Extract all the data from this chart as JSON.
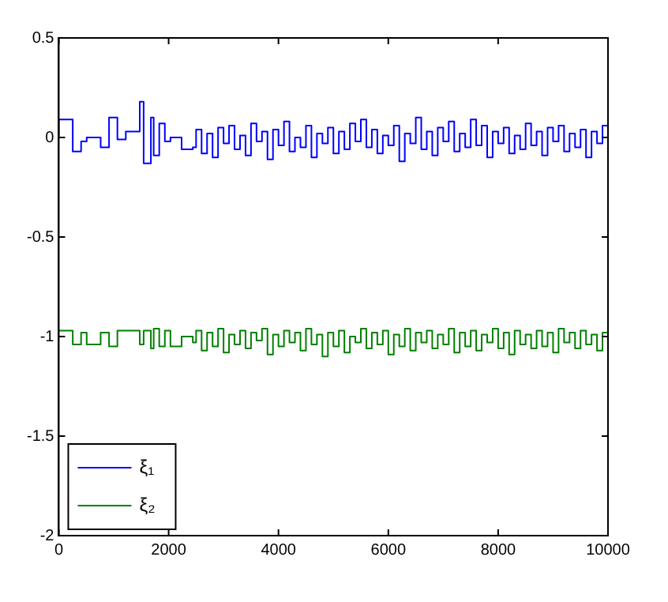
{
  "chart_data": {
    "type": "step",
    "x": [
      0,
      254,
      406,
      508,
      762,
      915,
      1067,
      1220,
      1474,
      1545,
      1677,
      1728,
      1829,
      1931,
      2033,
      2236,
      2440,
      2500,
      2600,
      2700,
      2800,
      2900,
      3000,
      3100,
      3200,
      3300,
      3400,
      3500,
      3600,
      3700,
      3800,
      3900,
      4000,
      4100,
      4200,
      4300,
      4400,
      4500,
      4600,
      4700,
      4800,
      4900,
      5000,
      5100,
      5200,
      5300,
      5400,
      5500,
      5600,
      5700,
      5800,
      5900,
      6000,
      6100,
      6200,
      6300,
      6400,
      6500,
      6600,
      6700,
      6800,
      6900,
      7000,
      7100,
      7200,
      7300,
      7400,
      7500,
      7600,
      7700,
      7800,
      7900,
      8000,
      8100,
      8200,
      8300,
      8400,
      8500,
      8600,
      8700,
      8800,
      8900,
      9000,
      9100,
      9200,
      9300,
      9400,
      9500,
      9600,
      9700,
      9800,
      9900,
      10000
    ],
    "series": [
      {
        "name": "ξ₁",
        "color": "#0000ff",
        "values": [
          0.01,
          0.09,
          -0.07,
          -0.02,
          0.0,
          -0.05,
          0.1,
          -0.01,
          0.03,
          0.18,
          -0.13,
          0.1,
          -0.09,
          0.07,
          -0.02,
          0.0,
          -0.06,
          -0.05,
          0.04,
          -0.08,
          0.02,
          -0.1,
          0.05,
          -0.03,
          0.06,
          -0.06,
          0.01,
          -0.09,
          0.07,
          -0.02,
          0.03,
          -0.11,
          0.04,
          -0.04,
          0.08,
          -0.07,
          0.0,
          -0.05,
          0.06,
          -0.1,
          0.02,
          -0.03,
          0.05,
          -0.08,
          0.03,
          -0.06,
          0.07,
          -0.02,
          0.09,
          -0.05,
          0.04,
          -0.08,
          0.01,
          -0.04,
          0.06,
          -0.12,
          0.02,
          -0.03,
          0.1,
          -0.06,
          0.03,
          -0.09,
          0.05,
          -0.02,
          0.08,
          -0.07,
          0.02,
          -0.05,
          0.09,
          -0.04,
          0.06,
          -0.1,
          0.03,
          -0.03,
          0.05,
          -0.08,
          0.01,
          -0.06,
          0.07,
          -0.04,
          0.03,
          -0.09,
          0.05,
          -0.02,
          0.06,
          -0.07,
          0.02,
          -0.05,
          0.04,
          -0.1,
          0.03,
          -0.03,
          0.06
        ]
      },
      {
        "name": "ξ₂",
        "color": "#008000",
        "values": [
          -0.97,
          -0.97,
          -1.04,
          -0.98,
          -1.04,
          -0.98,
          -1.05,
          -0.97,
          -0.97,
          -1.04,
          -0.97,
          -1.06,
          -0.96,
          -1.05,
          -0.97,
          -1.05,
          -1.0,
          -1.03,
          -0.97,
          -1.07,
          -0.98,
          -1.05,
          -0.96,
          -1.08,
          -0.99,
          -1.04,
          -0.97,
          -1.06,
          -0.98,
          -1.02,
          -0.96,
          -1.09,
          -0.99,
          -1.05,
          -0.97,
          -1.03,
          -0.98,
          -1.07,
          -0.96,
          -1.04,
          -0.99,
          -1.1,
          -0.98,
          -1.05,
          -0.97,
          -1.08,
          -1.0,
          -1.03,
          -0.96,
          -1.06,
          -0.98,
          -1.04,
          -0.97,
          -1.09,
          -0.99,
          -1.05,
          -0.96,
          -1.07,
          -0.98,
          -1.03,
          -0.97,
          -1.06,
          -0.99,
          -1.04,
          -0.96,
          -1.08,
          -0.98,
          -1.05,
          -0.97,
          -1.07,
          -0.99,
          -1.03,
          -0.96,
          -1.06,
          -0.98,
          -1.09,
          -0.97,
          -1.04,
          -0.99,
          -1.06,
          -0.97,
          -1.05,
          -0.98,
          -1.08,
          -0.96,
          -1.03,
          -0.98,
          -1.06,
          -0.97,
          -1.04,
          -0.99,
          -1.07,
          -0.98
        ]
      }
    ],
    "xlim": [
      0,
      10000
    ],
    "xticks": [
      0,
      2000,
      4000,
      6000,
      8000,
      10000
    ],
    "ylim": [
      -2,
      0.5
    ],
    "yticks": [
      -2,
      -1.5,
      -1,
      -0.5,
      0,
      0.5
    ],
    "legend": "bottom left",
    "grid": false
  }
}
